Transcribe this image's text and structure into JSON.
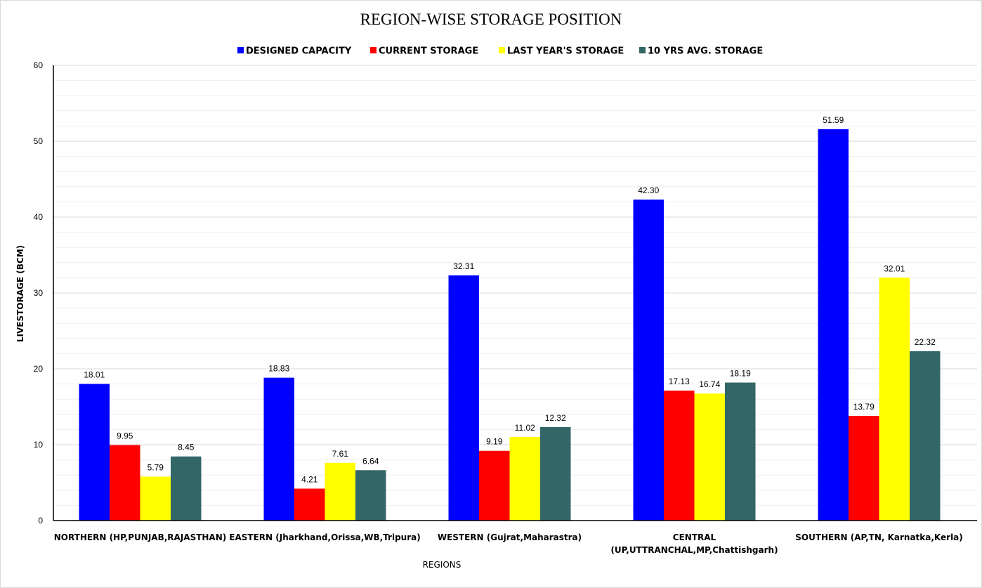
{
  "colors": {
    "designed_capacity": "#0000FF",
    "current_storage": "#FF0000",
    "last_years_storage": "#FFFF00",
    "ten_yrs_avg_storage": "#336666",
    "gridline_major": "#d9d9d9",
    "gridline_minor": "#efefef",
    "axis": "#000000"
  },
  "chart_data": {
    "type": "bar",
    "title": "REGION-WISE STORAGE POSITION",
    "xlabel": "REGIONS",
    "ylabel": "LIVESTORAGE (BCM)",
    "ylim": [
      0,
      60
    ],
    "yticks": [
      0,
      10,
      20,
      30,
      40,
      50,
      60
    ],
    "grid": true,
    "legend_position": "top",
    "categories": [
      [
        "NORTHERN (HP,PUNJAB,RAJASTHAN)"
      ],
      [
        "EASTERN (Jharkhand,Orissa,WB,Tripura)"
      ],
      [
        "WESTERN (Gujrat,Maharastra)"
      ],
      [
        "CENTRAL",
        "(UP,UTTRANCHAL,MP,Chattishgarh)"
      ],
      [
        "SOUTHERN (AP,TN, Karnatka,Kerla)"
      ]
    ],
    "series": [
      {
        "name": "DESIGNED CAPACITY",
        "color": "#0000FF",
        "values": [
          18.01,
          18.83,
          32.31,
          42.3,
          51.59
        ],
        "labels": [
          "18.01",
          "18.83",
          "32.31",
          "42.30",
          "51.59"
        ]
      },
      {
        "name": "CURRENT STORAGE",
        "color": "#FF0000",
        "values": [
          9.95,
          4.21,
          9.19,
          17.13,
          13.79
        ],
        "labels": [
          "9.95",
          "4.21",
          "9.19",
          "17.13",
          "13.79"
        ]
      },
      {
        "name": "LAST YEAR'S STORAGE",
        "color": "#FFFF00",
        "values": [
          5.79,
          7.61,
          11.02,
          16.74,
          32.01
        ],
        "labels": [
          "5.79",
          "7.61",
          "11.02",
          "16.74",
          "32.01"
        ]
      },
      {
        "name": "10 YRS AVG. STORAGE",
        "color": "#336666",
        "values": [
          8.45,
          6.64,
          12.32,
          18.19,
          22.32
        ],
        "labels": [
          "8.45",
          "6.64",
          "12.32",
          "18.19",
          "22.32"
        ]
      }
    ]
  }
}
